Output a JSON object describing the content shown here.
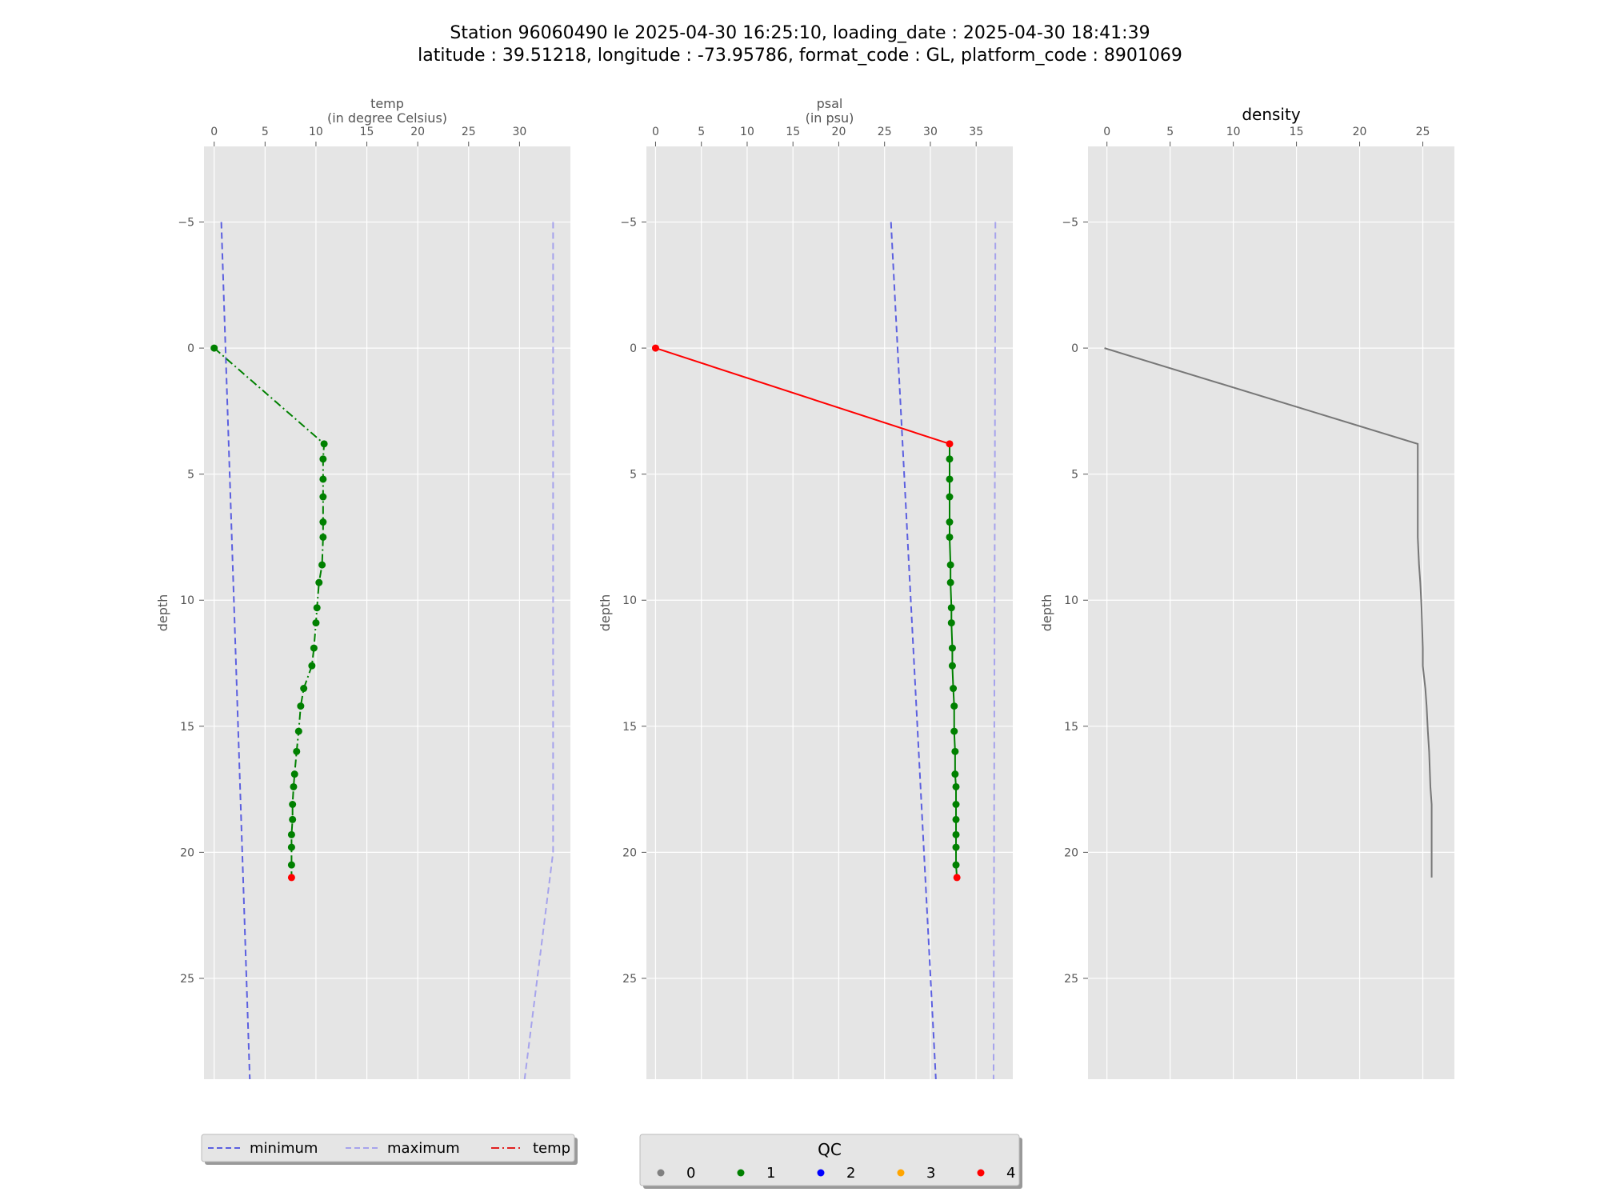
{
  "chart_data": {
    "type": "line",
    "title_line1": "Station 96060490 le 2025-04-30 16:25:10, loading_date : 2025-04-30 18:41:39",
    "title_line2": "latitude : 39.51218, longitude : -73.95786, format_code : GL, platform_code : 8901069",
    "ylabel": "depth",
    "ylim": [
      29,
      -8
    ],
    "yticks": [
      -5,
      0,
      5,
      10,
      15,
      20,
      25
    ],
    "panels": [
      {
        "id": "temp",
        "title": "",
        "xlabel_line1": "temp",
        "xlabel_line2": "(in degree Celsius)",
        "xlim": [
          -1,
          35
        ],
        "xticks": [
          0,
          5,
          10,
          15,
          20,
          25,
          30
        ],
        "minimum": [
          [
            0.7,
            -5
          ],
          [
            3.5,
            29
          ]
        ],
        "maximum": [
          [
            33.3,
            -5
          ],
          [
            33.3,
            20
          ],
          [
            30.5,
            29
          ]
        ],
        "profile": {
          "color": "#008000",
          "dash": "10,4,2,4",
          "depth": [
            0,
            3.8,
            4.4,
            5.2,
            5.9,
            6.9,
            7.5,
            8.6,
            9.3,
            10.3,
            10.9,
            11.9,
            12.6,
            13.5,
            14.2,
            15.2,
            16.0,
            16.9,
            17.4,
            18.1,
            18.7,
            19.3,
            19.8,
            20.5,
            21.0
          ],
          "value": [
            0,
            10.8,
            10.7,
            10.7,
            10.7,
            10.7,
            10.7,
            10.6,
            10.3,
            10.1,
            10.0,
            9.8,
            9.6,
            8.8,
            8.5,
            8.3,
            8.1,
            7.9,
            7.8,
            7.7,
            7.7,
            7.6,
            7.6,
            7.6,
            7.6
          ],
          "qc": [
            1,
            1,
            1,
            1,
            1,
            1,
            1,
            1,
            1,
            1,
            1,
            1,
            1,
            1,
            1,
            1,
            1,
            1,
            1,
            1,
            1,
            1,
            1,
            1,
            4
          ]
        }
      },
      {
        "id": "psal",
        "title": "",
        "xlabel_line1": "psal",
        "xlabel_line2": "(in psu)",
        "xlim": [
          -1,
          39
        ],
        "xticks": [
          0,
          5,
          10,
          15,
          20,
          25,
          30,
          35
        ],
        "minimum": [
          [
            25.7,
            -5
          ],
          [
            30.6,
            29
          ]
        ],
        "maximum": [
          [
            37.1,
            -5
          ],
          [
            36.9,
            29
          ]
        ],
        "profile": {
          "color": "#008000",
          "dash": "",
          "depth": [
            0,
            3.8,
            4.4,
            5.2,
            5.9,
            6.9,
            7.5,
            8.6,
            9.3,
            10.3,
            10.9,
            11.9,
            12.6,
            13.5,
            14.2,
            15.2,
            16.0,
            16.9,
            17.4,
            18.1,
            18.7,
            19.3,
            19.8,
            20.5,
            21.0
          ],
          "value": [
            0,
            32.1,
            32.1,
            32.1,
            32.1,
            32.1,
            32.1,
            32.2,
            32.2,
            32.3,
            32.3,
            32.4,
            32.4,
            32.5,
            32.6,
            32.6,
            32.7,
            32.7,
            32.8,
            32.8,
            32.8,
            32.8,
            32.8,
            32.8,
            32.9
          ],
          "qc": [
            4,
            4,
            1,
            1,
            1,
            1,
            1,
            1,
            1,
            1,
            1,
            1,
            1,
            1,
            1,
            1,
            1,
            1,
            1,
            1,
            1,
            1,
            1,
            1,
            4
          ],
          "red_segment_count": 1
        }
      },
      {
        "id": "density",
        "title": "density",
        "xlabel_line1": "",
        "xlabel_line2": "",
        "xlim": [
          -1.5,
          27.5
        ],
        "xticks": [
          0,
          5,
          10,
          15,
          20,
          25
        ],
        "profile": {
          "color": "#777777",
          "dash": "",
          "depth": [
            0,
            3.8,
            4.4,
            5.9,
            7.5,
            8.6,
            9.3,
            10.3,
            11.9,
            12.6,
            13.5,
            14.2,
            15.2,
            16.0,
            17.4,
            18.1,
            19.3,
            20.5,
            21.0
          ],
          "value": [
            -0.2,
            24.6,
            24.6,
            24.6,
            24.6,
            24.7,
            24.8,
            24.9,
            25.0,
            25.0,
            25.2,
            25.3,
            25.4,
            25.5,
            25.6,
            25.7,
            25.7,
            25.7,
            25.7
          ],
          "markers": false
        }
      }
    ],
    "legend_lines": {
      "placement": "bottom-left",
      "entries": [
        {
          "label": "minimum",
          "color": "#5b5fe0",
          "style": "dashed"
        },
        {
          "label": "maximum",
          "color": "#a6a3ec",
          "style": "dashed"
        },
        {
          "label": "temp",
          "color": "#e02020",
          "style": "dashdot"
        }
      ]
    },
    "legend_qc": {
      "placement": "bottom-center",
      "title": "QC",
      "entries": [
        {
          "label": "0",
          "color": "#808080"
        },
        {
          "label": "1",
          "color": "#008000"
        },
        {
          "label": "2",
          "color": "#0000ff"
        },
        {
          "label": "3",
          "color": "#ffa500"
        },
        {
          "label": "4",
          "color": "#ff0000"
        }
      ]
    },
    "colors": {
      "panel_bg": "#e5e5e5",
      "grid": "#ffffff",
      "minimum": "#5b5fe0",
      "maximum": "#a6a3ec",
      "qc_bad": "#ff0000",
      "qc_good": "#008000"
    }
  }
}
